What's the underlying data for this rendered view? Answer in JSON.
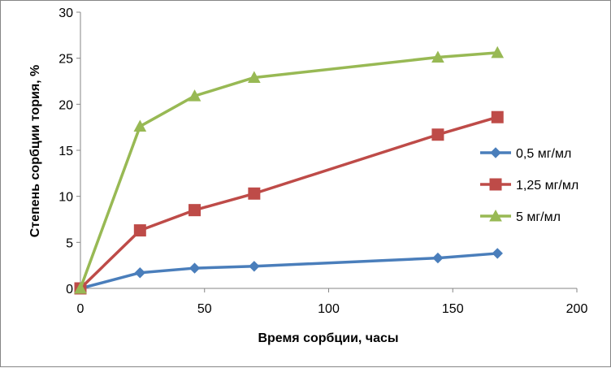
{
  "chart_data": {
    "type": "line",
    "title": "",
    "xlabel": "Время сорбции, часы",
    "ylabel": "Степень сорбции тория, %",
    "xlim": [
      0,
      200
    ],
    "ylim": [
      0,
      30
    ],
    "x_ticks": [
      0,
      50,
      100,
      150,
      200
    ],
    "y_ticks": [
      0,
      5,
      10,
      15,
      20,
      25,
      30
    ],
    "grid": false,
    "legend_position": "right",
    "x": [
      0,
      24,
      46,
      70,
      144,
      168
    ],
    "series": [
      {
        "name": "0,5 мг/мл",
        "color": "#4A7EBB",
        "marker": "diamond",
        "values": [
          0,
          1.7,
          2.2,
          2.4,
          3.3,
          3.8
        ]
      },
      {
        "name": "1,25 мг/мл",
        "color": "#BE4B48",
        "marker": "square",
        "values": [
          0,
          6.3,
          8.5,
          10.3,
          16.7,
          18.6
        ]
      },
      {
        "name": "5 мг/мл",
        "color": "#98B954",
        "marker": "triangle",
        "values": [
          0,
          17.6,
          20.9,
          22.9,
          25.1,
          25.6
        ]
      }
    ]
  }
}
